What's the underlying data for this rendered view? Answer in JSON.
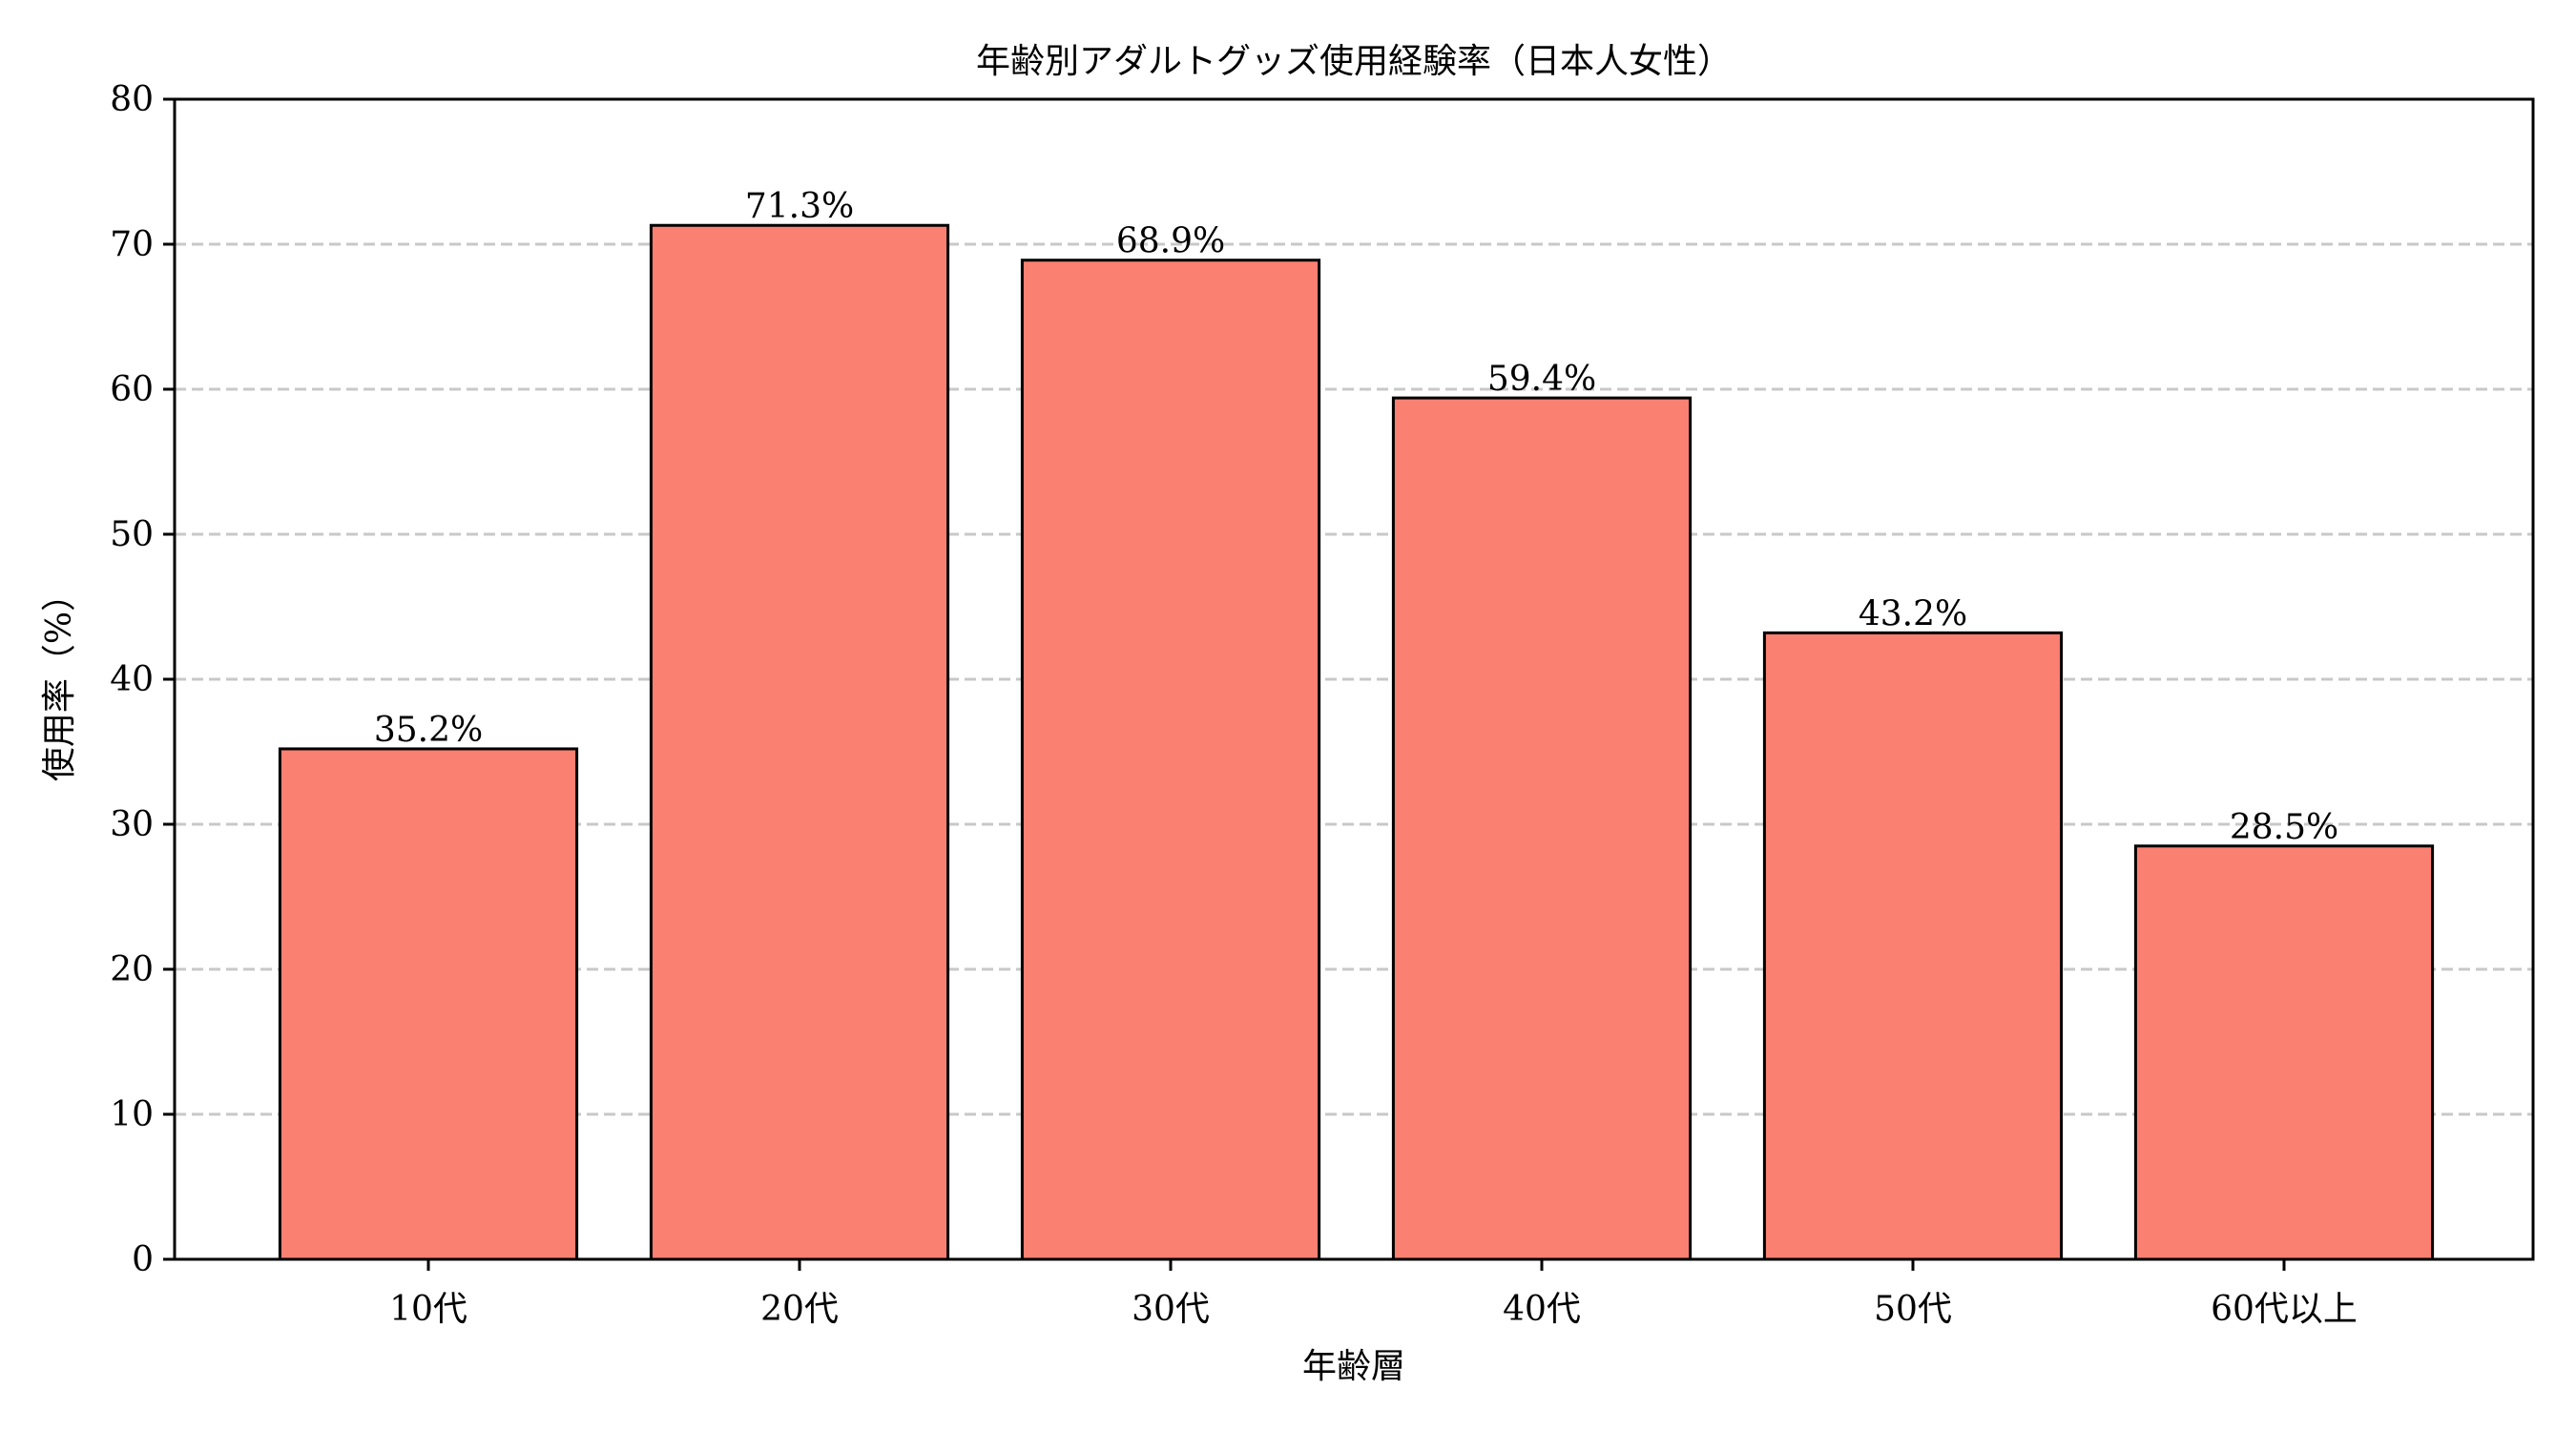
{
  "chart_data": {
    "type": "bar",
    "title": "年齢別アダルトグッズ使用経験率（日本人女性）",
    "xlabel": "年齢層",
    "ylabel": "使用率（%）",
    "categories": [
      "10代",
      "20代",
      "30代",
      "40代",
      "50代",
      "60代以上"
    ],
    "values": [
      35.2,
      71.3,
      68.9,
      59.4,
      43.2,
      28.5
    ],
    "value_labels": [
      "35.2%",
      "71.3%",
      "68.9%",
      "59.4%",
      "43.2%",
      "28.5%"
    ],
    "ylim": [
      0,
      80
    ],
    "yticks": [
      0,
      10,
      20,
      30,
      40,
      50,
      60,
      70,
      80
    ],
    "grid": {
      "axis": "y",
      "style": "dashed",
      "color": "#c8c8c8"
    },
    "legend": null,
    "colors": {
      "bar_fill": "#FA8072",
      "bar_edge": "#000000"
    }
  }
}
